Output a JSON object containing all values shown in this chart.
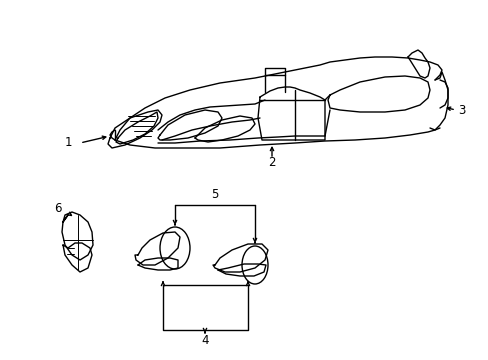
{
  "background_color": "#ffffff",
  "line_color": "#000000",
  "text_color": "#000000",
  "figsize": [
    4.89,
    3.6
  ],
  "dpi": 100,
  "lw": 1.0,
  "fs": 8.5
}
